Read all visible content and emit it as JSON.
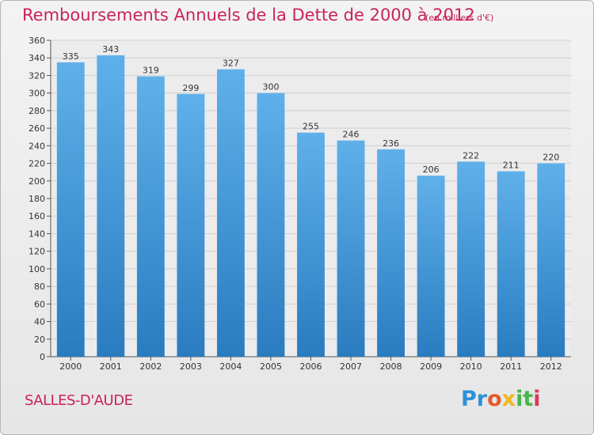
{
  "header": {
    "title": "Remboursements Annuels de la Dette de 2000 à 2012",
    "subtitle": "(en milliers d'€)"
  },
  "footer": {
    "location": "SALLES-D'AUDE",
    "brand": [
      "Pr",
      "o",
      "x",
      "it",
      "i"
    ]
  },
  "colors": {
    "title": "#c8235a",
    "bar_top": "#5fb0ea",
    "bar_bottom": "#2a7cc0",
    "grid": "#d0d0d0"
  },
  "chart_data": {
    "type": "bar",
    "title": "Remboursements Annuels de la Dette de 2000 à 2012",
    "categories": [
      "2000",
      "2001",
      "2002",
      "2003",
      "2004",
      "2005",
      "2006",
      "2007",
      "2008",
      "2009",
      "2010",
      "2011",
      "2012"
    ],
    "values": [
      335,
      343,
      319,
      299,
      327,
      300,
      255,
      246,
      236,
      206,
      222,
      211,
      220
    ],
    "ylim": [
      0,
      360
    ],
    "ystep": 20,
    "grid": true
  }
}
